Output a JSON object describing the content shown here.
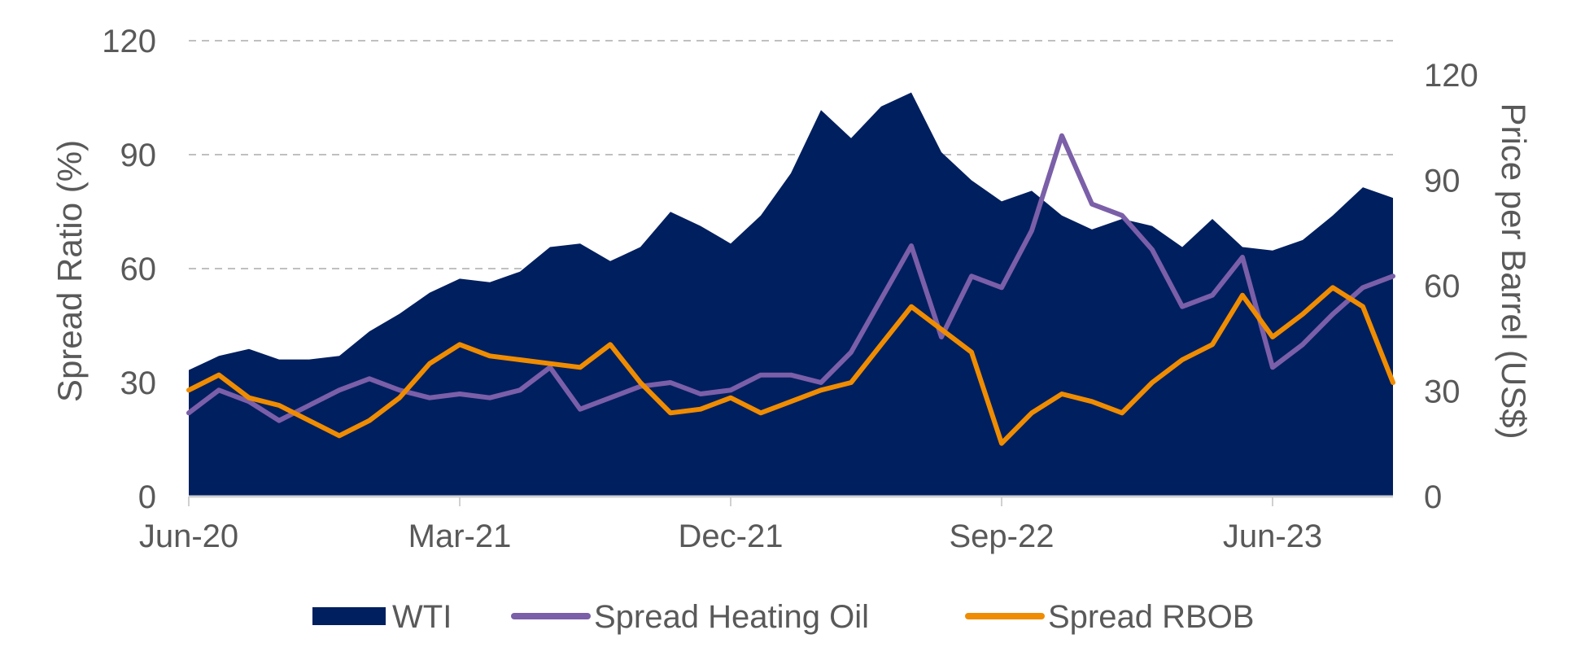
{
  "colors": {
    "wti": "#001f5f",
    "heating_oil": "#7b5fa8",
    "rbob": "#ef8c00",
    "grid": "#c0c0c0",
    "axis": "#d0d0d0",
    "text": "#595959"
  },
  "chart_data": {
    "type": "area",
    "title": "",
    "xlabel": "",
    "ylabel": "Spread Ratio (%)",
    "y2label": "Price per Barrel (US$)",
    "ylim": [
      0,
      120
    ],
    "y2lim": [
      0,
      130
    ],
    "y_ticks": [
      "0",
      "30",
      "60",
      "90",
      "120"
    ],
    "y2_ticks": [
      "0",
      "30",
      "60",
      "90",
      "120"
    ],
    "x_ticks": [
      "Jun-20",
      "Mar-21",
      "Dec-21",
      "Sep-22",
      "Jun-23"
    ],
    "x_tick_dates": [
      "2020-06",
      "2021-03",
      "2021-12",
      "2022-09",
      "2023-06"
    ],
    "grid": "horizontal dashed",
    "legend": "bottom",
    "series": [
      {
        "name": "WTI",
        "axis": "right",
        "style": "area",
        "x": [
          "2020-06",
          "2020-07",
          "2020-08",
          "2020-09",
          "2020-10",
          "2020-11",
          "2020-12",
          "2021-01",
          "2021-02",
          "2021-03",
          "2021-04",
          "2021-05",
          "2021-06",
          "2021-07",
          "2021-08",
          "2021-09",
          "2021-10",
          "2021-11",
          "2021-12",
          "2022-01",
          "2022-02",
          "2022-03",
          "2022-04",
          "2022-05",
          "2022-06",
          "2022-07",
          "2022-08",
          "2022-09",
          "2022-10",
          "2022-11",
          "2022-12",
          "2023-01",
          "2023-02",
          "2023-03",
          "2023-04",
          "2023-05",
          "2023-06",
          "2023-07",
          "2023-08",
          "2023-09",
          "2023-10"
        ],
        "values": [
          36,
          40,
          42,
          39,
          39,
          40,
          47,
          52,
          58,
          62,
          61,
          64,
          71,
          72,
          67,
          71,
          81,
          77,
          72,
          80,
          92,
          110,
          102,
          111,
          115,
          98,
          90,
          84,
          87,
          80,
          76,
          79,
          77,
          71,
          79,
          71,
          70,
          73,
          80,
          88,
          85
        ]
      },
      {
        "name": "Spread Heating Oil",
        "axis": "left",
        "style": "line",
        "x": [
          "2020-06",
          "2020-07",
          "2020-08",
          "2020-09",
          "2020-10",
          "2020-11",
          "2020-12",
          "2021-01",
          "2021-02",
          "2021-03",
          "2021-04",
          "2021-05",
          "2021-06",
          "2021-07",
          "2021-08",
          "2021-09",
          "2021-10",
          "2021-11",
          "2021-12",
          "2022-01",
          "2022-02",
          "2022-03",
          "2022-04",
          "2022-05",
          "2022-06",
          "2022-07",
          "2022-08",
          "2022-09",
          "2022-10",
          "2022-11",
          "2022-12",
          "2023-01",
          "2023-02",
          "2023-03",
          "2023-04",
          "2023-05",
          "2023-06",
          "2023-07",
          "2023-08",
          "2023-09",
          "2023-10"
        ],
        "values": [
          22,
          28,
          25,
          20,
          24,
          28,
          31,
          28,
          26,
          27,
          26,
          28,
          34,
          23,
          26,
          29,
          30,
          27,
          28,
          32,
          32,
          30,
          38,
          52,
          66,
          42,
          58,
          55,
          70,
          95,
          77,
          74,
          65,
          50,
          53,
          63,
          34,
          40,
          48,
          55,
          58
        ]
      },
      {
        "name": "Spread RBOB",
        "axis": "left",
        "style": "line",
        "x": [
          "2020-06",
          "2020-07",
          "2020-08",
          "2020-09",
          "2020-10",
          "2020-11",
          "2020-12",
          "2021-01",
          "2021-02",
          "2021-03",
          "2021-04",
          "2021-05",
          "2021-06",
          "2021-07",
          "2021-08",
          "2021-09",
          "2021-10",
          "2021-11",
          "2021-12",
          "2022-01",
          "2022-02",
          "2022-03",
          "2022-04",
          "2022-05",
          "2022-06",
          "2022-07",
          "2022-08",
          "2022-09",
          "2022-10",
          "2022-11",
          "2022-12",
          "2023-01",
          "2023-02",
          "2023-03",
          "2023-04",
          "2023-05",
          "2023-06",
          "2023-07",
          "2023-08",
          "2023-09",
          "2023-10"
        ],
        "values": [
          28,
          32,
          26,
          24,
          20,
          16,
          20,
          26,
          35,
          40,
          37,
          36,
          35,
          34,
          40,
          30,
          22,
          23,
          26,
          22,
          25,
          28,
          30,
          40,
          50,
          44,
          38,
          14,
          22,
          27,
          25,
          22,
          30,
          36,
          40,
          53,
          42,
          48,
          55,
          50,
          30
        ]
      }
    ]
  }
}
